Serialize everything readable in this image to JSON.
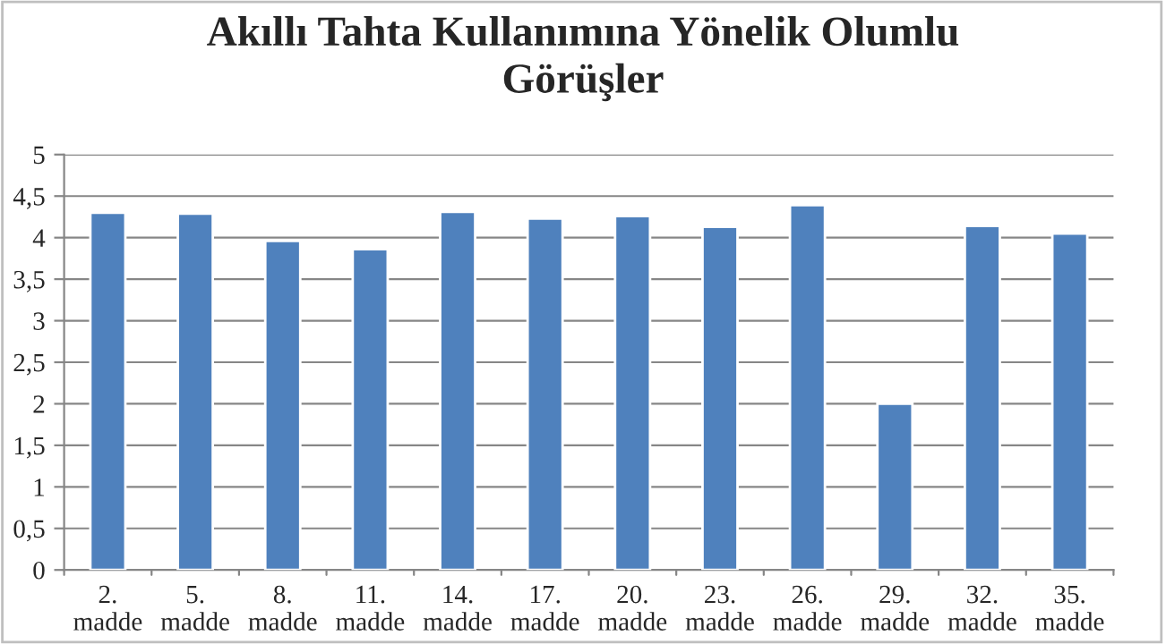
{
  "chart_data": {
    "type": "bar",
    "title": "Akıllı Tahta Kullanımına Yönelik Olumlu\nGörüşler",
    "categories": [
      "2.\nmadde",
      "5.\nmadde",
      "8.\nmadde",
      "11.\nmadde",
      "14.\nmadde",
      "17.\nmadde",
      "20.\nmadde",
      "23.\nmadde",
      "26.\nmadde",
      "29.\nmadde",
      "32.\nmadde",
      "35.\nmadde"
    ],
    "values": [
      4.3,
      4.29,
      3.96,
      3.86,
      4.31,
      4.23,
      4.26,
      4.13,
      4.39,
      2.0,
      4.14,
      4.05
    ],
    "color": "#4f81bd",
    "ylim": [
      0,
      5
    ],
    "yticks": [
      0,
      {
        "value": 0.5,
        "label": "0,5"
      },
      1,
      {
        "value": 1.5,
        "label": "1,5"
      },
      2,
      {
        "value": 2.5,
        "label": "2,5"
      },
      3,
      {
        "value": 3.5,
        "label": "3,5"
      },
      4,
      {
        "value": 4.5,
        "label": "4,5"
      },
      5
    ],
    "grid": "y"
  }
}
